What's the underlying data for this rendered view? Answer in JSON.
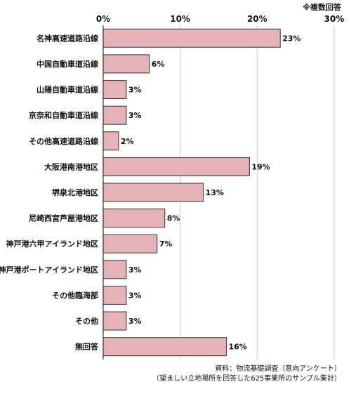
{
  "chart_data": {
    "type": "bar",
    "orientation": "horizontal",
    "note": "※複数回答",
    "categories": [
      "名神高速道路沿線",
      "中国自動車道沿線",
      "山陽自動車道沿線",
      "京奈和自動車道沿線",
      "その他高速道路沿線",
      "大阪港南港地区",
      "堺泉北港地区",
      "尼崎西宮芦屋港地区",
      "神戸港六甲アイランド地区",
      "神戸港ポートアイランド地区",
      "その他臨海部",
      "その他",
      "無回答"
    ],
    "values": [
      23,
      6,
      3,
      3,
      2,
      19,
      13,
      8,
      7,
      3,
      3,
      3,
      16
    ],
    "value_labels": [
      "23%",
      "6%",
      "3%",
      "3%",
      "2%",
      "19%",
      "13%",
      "8%",
      "7%",
      "3%",
      "3%",
      "3%",
      "16%"
    ],
    "xlim": [
      0,
      30
    ],
    "xticks": [
      0,
      10,
      20,
      30
    ],
    "xtick_labels": [
      "0%",
      "10%",
      "20%",
      "30%"
    ],
    "grid": true,
    "bar_color": "#e5b2b5",
    "bar_edge_color": "#333333",
    "grid_color": "#c8c8c8"
  },
  "source": {
    "line1": "資料：物流基礎調査（意向アンケート）",
    "line2": "（望ましい立地場所を回答した625事業所のサンプル集計）"
  }
}
